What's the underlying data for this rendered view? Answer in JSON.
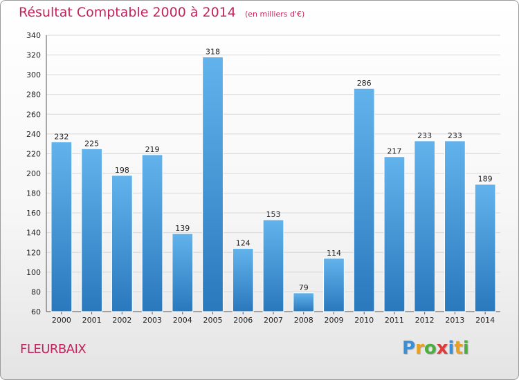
{
  "header": {
    "title": "Résultat Comptable 2000 à 2014",
    "unit": "(en milliers d'€)"
  },
  "commune": "FLEURBAIX",
  "logo": {
    "letters": [
      "P",
      "r",
      "o",
      "x",
      "i",
      "t",
      "i"
    ],
    "colors": [
      "#3a8fd6",
      "#e8a020",
      "#4cae3c",
      "#e03a3a",
      "#3a8fd6",
      "#e8a020",
      "#4cae3c"
    ]
  },
  "colors": {
    "bar_light": "#62b3ec",
    "bar_dark": "#2a78bd",
    "grid": "#d8d8d8",
    "title": "#c0245c"
  },
  "chart_data": {
    "type": "bar",
    "title": "Résultat Comptable 2000 à 2014",
    "categories": [
      "2000",
      "2001",
      "2002",
      "2003",
      "2004",
      "2005",
      "2006",
      "2007",
      "2008",
      "2009",
      "2010",
      "2011",
      "2012",
      "2013",
      "2014"
    ],
    "values": [
      232,
      225,
      198,
      219,
      139,
      318,
      124,
      153,
      79,
      114,
      286,
      217,
      233,
      233,
      189
    ],
    "ylim": [
      60,
      340
    ],
    "yticks": [
      60,
      80,
      100,
      120,
      140,
      160,
      180,
      200,
      220,
      240,
      260,
      280,
      300,
      320,
      340
    ],
    "grid": true,
    "data_labels": true
  }
}
